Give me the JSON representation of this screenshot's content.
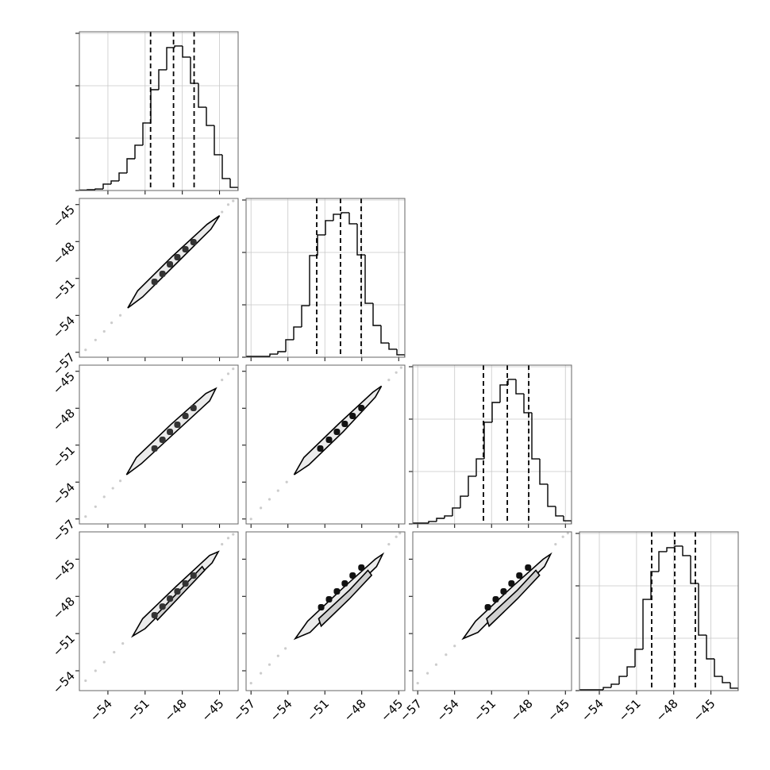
{
  "chart_data": [
    {
      "type": "histogram",
      "grid": true,
      "color": "#000000",
      "bins": [
        -56.3,
        -55.66,
        -55.02,
        -54.38,
        -53.74,
        -53.1,
        -52.46,
        -51.82,
        -51.18,
        -50.54,
        -49.9,
        -49.26,
        -48.62,
        -47.98,
        -47.34,
        -46.7,
        -46.06,
        -45.42,
        -44.78,
        -44.14,
        -43.5
      ],
      "counts": [
        4,
        8,
        15,
        61,
        91,
        167,
        303,
        432,
        644,
        962,
        1152,
        1364,
        1379,
        1273,
        1023,
        795,
        621,
        341,
        114,
        30
      ],
      "quantiles": [
        -50.56,
        -48.71,
        -47.05
      ],
      "xlim": [
        -56.3,
        -43.5
      ],
      "ylim": [
        0,
        1515
      ],
      "xticks": [
        -54,
        -51,
        -48,
        -45
      ],
      "yticks": [
        0,
        500,
        1000,
        1500
      ]
    },
    {
      "type": "contour",
      "grid": false,
      "color": "#333333",
      "contours": [
        {
          "x": [
            -52.4,
            -51.6,
            -48.8,
            -46.0,
            -45.0,
            -45.7,
            -48.4,
            -51.2
          ],
          "y": [
            -53.4,
            -52.0,
            -49.2,
            -46.6,
            -45.9,
            -47.0,
            -49.7,
            -52.5
          ]
        }
      ],
      "points": {
        "x": [
          -50.24,
          -49.6,
          -49.0,
          -48.4,
          -47.75,
          -47.1
        ],
        "y": [
          -51.27,
          -50.63,
          -49.85,
          -49.27,
          -48.63,
          -48.05
        ]
      },
      "samples": {
        "x": [
          -55.8,
          -55.0,
          -54.3,
          -53.7,
          -53.0,
          -44.8,
          -44.3,
          -43.9
        ],
        "y": [
          -56.8,
          -56.0,
          -55.3,
          -54.6,
          -54.0,
          -45.6,
          -45.0,
          -44.7
        ]
      },
      "xlim": [
        -56.3,
        -43.5
      ],
      "ylim": [
        -57.4,
        -44.5
      ],
      "xticks": [
        -54,
        -51,
        -48,
        -45
      ],
      "yticks": [
        {
          "value": -57,
          "label": "−57"
        },
        {
          "value": -54,
          "label": "−54"
        },
        {
          "value": -51,
          "label": "−51"
        },
        {
          "value": -48,
          "label": "−48"
        },
        {
          "value": -45,
          "label": "−45"
        }
      ]
    },
    {
      "type": "histogram",
      "grid": true,
      "color": "#000000",
      "bins": [
        -57.4,
        -56.755,
        -56.11,
        -55.465,
        -54.82,
        -54.175,
        -53.53,
        -52.885,
        -52.24,
        -51.595,
        -50.95,
        -50.305,
        -49.66,
        -49.015,
        -48.37,
        -47.725,
        -47.08,
        -46.435,
        -45.79,
        -45.145,
        -44.5
      ],
      "counts": [
        8,
        8,
        8,
        30,
        53,
        167,
        288,
        492,
        970,
        1167,
        1303,
        1364,
        1379,
        1273,
        977,
        515,
        303,
        136,
        76,
        23
      ],
      "quantiles": [
        -51.66,
        -49.73,
        -48.05
      ],
      "xlim": [
        -57.4,
        -44.5
      ],
      "ylim": [
        0,
        1515
      ],
      "xticks": [
        -57,
        -54,
        -51,
        -48,
        -45
      ],
      "yticks": [
        0,
        500,
        1000,
        1500
      ]
    },
    {
      "type": "contour",
      "grid": false,
      "color": "#333333",
      "contours": [
        {
          "x": [
            -52.5,
            -51.7,
            -48.9,
            -46.1,
            -45.3,
            -45.8,
            -48.5,
            -51.3
          ],
          "y": [
            -53.4,
            -52.0,
            -49.3,
            -46.8,
            -46.4,
            -47.4,
            -49.9,
            -52.5
          ]
        }
      ],
      "points": {
        "x": [
          -50.24,
          -49.6,
          -49.0,
          -48.4,
          -47.75,
          -47.1
        ],
        "y": [
          -51.27,
          -50.56,
          -49.92,
          -49.34,
          -48.63,
          -47.98
        ]
      },
      "samples": {
        "x": [
          -55.8,
          -55.0,
          -54.3,
          -53.6,
          -53.0,
          -44.8,
          -44.3,
          -43.9
        ],
        "y": [
          -56.8,
          -56.0,
          -55.2,
          -54.5,
          -53.9,
          -45.7,
          -45.2,
          -44.8
        ]
      },
      "xlim": [
        -56.3,
        -43.5
      ],
      "ylim": [
        -57.4,
        -44.5
      ],
      "xticks": [
        -54,
        -51,
        -48,
        -45
      ],
      "yticks": [
        {
          "value": -57,
          "label": "−57"
        },
        {
          "value": -54,
          "label": "−54"
        },
        {
          "value": -51,
          "label": "−51"
        },
        {
          "value": -48,
          "label": "−48"
        },
        {
          "value": -45,
          "label": "−45"
        }
      ]
    },
    {
      "type": "contour",
      "grid": false,
      "color": "#111111",
      "contours": [
        {
          "x": [
            -53.5,
            -52.7,
            -49.8,
            -47.1,
            -46.4,
            -46.9,
            -49.5,
            -52.3
          ],
          "y": [
            -53.4,
            -52.0,
            -49.2,
            -46.7,
            -46.2,
            -47.1,
            -49.9,
            -52.6
          ]
        }
      ],
      "points": {
        "x": [
          -51.37,
          -50.66,
          -50.02,
          -49.38,
          -48.74,
          -48.03
        ],
        "y": [
          -51.27,
          -50.56,
          -49.92,
          -49.27,
          -48.63,
          -47.98
        ]
      },
      "samples": {
        "x": [
          -57.0,
          -56.2,
          -55.5,
          -54.8,
          -54.1,
          -45.8,
          -45.2,
          -44.8
        ],
        "y": [
          -57.0,
          -56.1,
          -55.4,
          -54.7,
          -54.0,
          -45.7,
          -45.1,
          -44.7
        ]
      },
      "xlim": [
        -57.4,
        -44.5
      ],
      "ylim": [
        -57.4,
        -44.5
      ],
      "xticks": [
        -57,
        -54,
        -51,
        -48,
        -45
      ],
      "yticks": [
        -57,
        -54,
        -51,
        -48,
        -45
      ]
    },
    {
      "type": "histogram",
      "grid": true,
      "color": "#000000",
      "bins": [
        -57.4,
        -56.755,
        -56.11,
        -55.465,
        -54.82,
        -54.175,
        -53.53,
        -52.885,
        -52.24,
        -51.595,
        -50.95,
        -50.305,
        -49.66,
        -49.015,
        -48.37,
        -47.725,
        -47.08,
        -46.435,
        -45.79,
        -45.145,
        -44.5
      ],
      "counts": [
        8,
        8,
        23,
        53,
        76,
        152,
        265,
        455,
        621,
        970,
        1159,
        1326,
        1379,
        1242,
        1061,
        621,
        379,
        167,
        76,
        30
      ],
      "quantiles": [
        -51.66,
        -49.72,
        -47.98
      ],
      "xlim": [
        -57.4,
        -44.5
      ],
      "ylim": [
        0,
        1515
      ],
      "xticks": [
        -57,
        -54,
        -51,
        -48,
        -45
      ],
      "yticks": [
        0,
        500,
        1000,
        1500
      ]
    },
    {
      "type": "contour",
      "grid": false,
      "color": "#333333",
      "contours": [
        {
          "x": [
            -52.0,
            -51.2,
            -48.5,
            -45.8,
            -45.1,
            -45.6,
            -48.2,
            -51.0
          ],
          "y": [
            -51.2,
            -49.8,
            -47.2,
            -44.7,
            -44.4,
            -45.3,
            -47.8,
            -50.6
          ]
        },
        {
          "x": [
            -50.2,
            -48.0,
            -46.4,
            -46.2,
            -48.0,
            -50.0
          ],
          "y": [
            -49.6,
            -47.3,
            -45.6,
            -45.9,
            -47.8,
            -49.9
          ]
        }
      ],
      "points": {
        "x": [
          -50.24,
          -49.6,
          -49.0,
          -48.4,
          -47.75,
          -47.1
        ],
        "y": [
          -49.52,
          -48.82,
          -48.18,
          -47.6,
          -46.96,
          -46.32
        ]
      },
      "samples": {
        "x": [
          -55.8,
          -55.0,
          -54.3,
          -53.5,
          -52.8,
          -44.8,
          -44.3,
          -43.9
        ],
        "y": [
          -54.8,
          -54.0,
          -53.3,
          -52.5,
          -51.8,
          -43.8,
          -43.3,
          -43.0
        ]
      },
      "xlim": [
        -56.3,
        -43.5
      ],
      "ylim": [
        -55.6,
        -42.8
      ],
      "xticks": [
        {
          "value": -54,
          "label": "−54"
        },
        {
          "value": -51,
          "label": "−51"
        },
        {
          "value": -48,
          "label": "−48"
        },
        {
          "value": -45,
          "label": "−45"
        }
      ],
      "yticks": [
        {
          "value": -54,
          "label": "−54"
        },
        {
          "value": -51,
          "label": "−51"
        },
        {
          "value": -48,
          "label": "−48"
        },
        {
          "value": -45,
          "label": "−45"
        }
      ]
    },
    {
      "type": "contour",
      "grid": false,
      "color": "#111111",
      "contours": [
        {
          "x": [
            -53.4,
            -52.4,
            -49.5,
            -46.9,
            -46.3,
            -46.8,
            -49.2,
            -52.2
          ],
          "y": [
            -51.4,
            -50.0,
            -47.3,
            -45.0,
            -44.6,
            -45.6,
            -47.9,
            -50.9
          ]
        },
        {
          "x": [
            -51.5,
            -49.0,
            -47.5,
            -47.2,
            -49.0,
            -51.3
          ],
          "y": [
            -49.8,
            -47.5,
            -45.9,
            -46.3,
            -48.2,
            -50.4
          ]
        }
      ],
      "points": {
        "x": [
          -51.3,
          -50.66,
          -50.02,
          -49.38,
          -48.74,
          -48.03
        ],
        "y": [
          -48.88,
          -48.24,
          -47.6,
          -46.96,
          -46.32,
          -45.68
        ]
      },
      "samples": {
        "x": [
          -57.0,
          -56.2,
          -55.5,
          -54.8,
          -54.2,
          -45.8,
          -45.2,
          -44.9
        ],
        "y": [
          -55.0,
          -54.2,
          -53.5,
          -52.8,
          -52.2,
          -43.8,
          -43.2,
          -42.9
        ]
      },
      "xlim": [
        -57.4,
        -44.5
      ],
      "ylim": [
        -55.6,
        -42.8
      ],
      "xticks": [
        {
          "value": -57,
          "label": "−57"
        },
        {
          "value": -54,
          "label": "−54"
        },
        {
          "value": -51,
          "label": "−51"
        },
        {
          "value": -48,
          "label": "−48"
        },
        {
          "value": -45,
          "label": "−45"
        }
      ],
      "yticks": [
        -54,
        -51,
        -48,
        -45
      ]
    },
    {
      "type": "contour",
      "grid": false,
      "color": "#111111",
      "contours": [
        {
          "x": [
            -53.3,
            -52.3,
            -49.4,
            -46.8,
            -46.2,
            -46.7,
            -49.1,
            -52.1
          ],
          "y": [
            -51.4,
            -50.0,
            -47.3,
            -45.0,
            -44.6,
            -45.6,
            -47.9,
            -50.9
          ]
        },
        {
          "x": [
            -51.4,
            -48.9,
            -47.4,
            -47.1,
            -48.9,
            -51.2
          ],
          "y": [
            -49.8,
            -47.5,
            -45.9,
            -46.3,
            -48.2,
            -50.4
          ]
        }
      ],
      "points": {
        "x": [
          -51.3,
          -50.66,
          -50.02,
          -49.38,
          -48.74,
          -48.03
        ],
        "y": [
          -48.88,
          -48.24,
          -47.6,
          -46.96,
          -46.32,
          -45.68
        ]
      },
      "samples": {
        "x": [
          -57.0,
          -56.2,
          -55.5,
          -54.7,
          -54.0,
          -45.8,
          -45.2,
          -44.8
        ],
        "y": [
          -55.0,
          -54.2,
          -53.5,
          -52.7,
          -52.0,
          -43.8,
          -43.2,
          -42.9
        ]
      },
      "xlim": [
        -57.4,
        -44.5
      ],
      "ylim": [
        -55.6,
        -42.8
      ],
      "xticks": [
        {
          "value": -57,
          "label": "−57"
        },
        {
          "value": -54,
          "label": "−54"
        },
        {
          "value": -51,
          "label": "−51"
        },
        {
          "value": -48,
          "label": "−48"
        },
        {
          "value": -45,
          "label": "−45"
        }
      ],
      "yticks": [
        -54,
        -51,
        -48,
        -45
      ]
    },
    {
      "type": "histogram",
      "grid": true,
      "color": "#000000",
      "bins": [
        -55.6,
        -54.96,
        -54.32,
        -53.68,
        -53.04,
        -52.4,
        -51.76,
        -51.12,
        -50.48,
        -49.84,
        -49.2,
        -48.56,
        -47.92,
        -47.28,
        -46.64,
        -46.0,
        -45.36,
        -44.72,
        -44.08,
        -43.44,
        -42.8
      ],
      "counts": [
        8,
        8,
        8,
        30,
        61,
        136,
        227,
        394,
        871,
        1136,
        1326,
        1364,
        1379,
        1288,
        1023,
        530,
        303,
        136,
        76,
        23
      ],
      "quantiles": [
        -49.78,
        -47.92,
        -46.26
      ],
      "xlim": [
        -55.6,
        -42.8
      ],
      "ylim": [
        0,
        1515
      ],
      "xticks": [
        {
          "value": -54,
          "label": "−54"
        },
        {
          "value": -51,
          "label": "−51"
        },
        {
          "value": -48,
          "label": "−48"
        },
        {
          "value": -45,
          "label": "−45"
        }
      ],
      "yticks": [
        0,
        500,
        1000,
        1500
      ]
    }
  ]
}
